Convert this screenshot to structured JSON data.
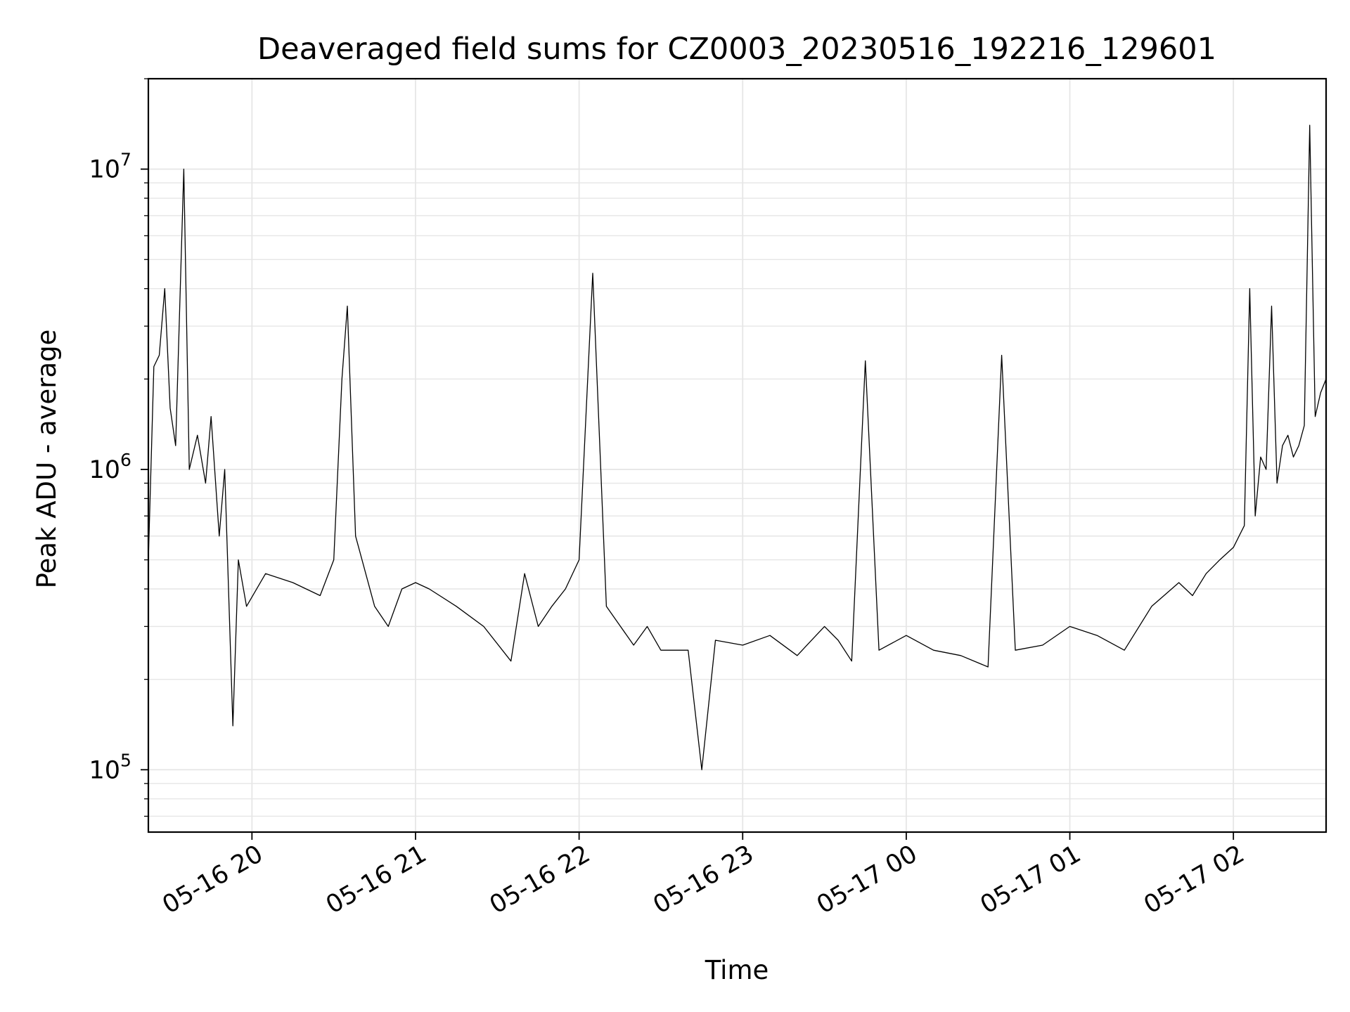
{
  "chart_data": {
    "type": "line",
    "title": "Deaveraged field sums for CZ0003_20230516_192216_129601",
    "xlabel": "Time",
    "ylabel": "Peak ADU - average",
    "y_scale": "log",
    "ylim": [
      62000,
      20000000
    ],
    "xlim": [
      "2023-05-16 19:22",
      "2023-05-17 02:34"
    ],
    "grid": true,
    "line_color": "#000000",
    "grid_color": "#e6e6e6",
    "x_ticks": [
      "05-16 20",
      "05-16 21",
      "05-16 22",
      "05-16 23",
      "05-17 00",
      "05-17 01",
      "05-17 02"
    ],
    "y_ticks": [
      {
        "base": "10",
        "exp": "5"
      },
      {
        "base": "10",
        "exp": "6"
      },
      {
        "base": "10",
        "exp": "7"
      }
    ],
    "series": [
      {
        "x": [
          "2023-05-16 19:22",
          "2023-05-16 19:24",
          "2023-05-16 19:26",
          "2023-05-16 19:28",
          "2023-05-16 19:30",
          "2023-05-16 19:32",
          "2023-05-16 19:35",
          "2023-05-16 19:37",
          "2023-05-16 19:40",
          "2023-05-16 19:43",
          "2023-05-16 19:45",
          "2023-05-16 19:48",
          "2023-05-16 19:50",
          "2023-05-16 19:53",
          "2023-05-16 19:55",
          "2023-05-16 19:58",
          "2023-05-16 20:05",
          "2023-05-16 20:15",
          "2023-05-16 20:25",
          "2023-05-16 20:30",
          "2023-05-16 20:33",
          "2023-05-16 20:35",
          "2023-05-16 20:38",
          "2023-05-16 20:45",
          "2023-05-16 20:50",
          "2023-05-16 20:55",
          "2023-05-16 21:00",
          "2023-05-16 21:05",
          "2023-05-16 21:15",
          "2023-05-16 21:25",
          "2023-05-16 21:35",
          "2023-05-16 21:40",
          "2023-05-16 21:45",
          "2023-05-16 21:50",
          "2023-05-16 21:55",
          "2023-05-16 22:00",
          "2023-05-16 22:05",
          "2023-05-16 22:10",
          "2023-05-16 22:20",
          "2023-05-16 22:25",
          "2023-05-16 22:30",
          "2023-05-16 22:40",
          "2023-05-16 22:45",
          "2023-05-16 22:50",
          "2023-05-16 23:00",
          "2023-05-16 23:10",
          "2023-05-16 23:20",
          "2023-05-16 23:30",
          "2023-05-16 23:35",
          "2023-05-16 23:40",
          "2023-05-16 23:45",
          "2023-05-16 23:50",
          "2023-05-17 00:00",
          "2023-05-17 00:10",
          "2023-05-17 00:20",
          "2023-05-17 00:30",
          "2023-05-17 00:35",
          "2023-05-17 00:40",
          "2023-05-17 00:50",
          "2023-05-17 01:00",
          "2023-05-17 01:10",
          "2023-05-17 01:20",
          "2023-05-17 01:30",
          "2023-05-17 01:40",
          "2023-05-17 01:45",
          "2023-05-17 01:50",
          "2023-05-17 01:55",
          "2023-05-17 02:00",
          "2023-05-17 02:04",
          "2023-05-17 02:06",
          "2023-05-17 02:08",
          "2023-05-17 02:10",
          "2023-05-17 02:12",
          "2023-05-17 02:14",
          "2023-05-17 02:16",
          "2023-05-17 02:18",
          "2023-05-17 02:20",
          "2023-05-17 02:22",
          "2023-05-17 02:24",
          "2023-05-17 02:26",
          "2023-05-17 02:28",
          "2023-05-17 02:30",
          "2023-05-17 02:32",
          "2023-05-17 02:34"
        ],
        "y": [
          500000,
          2200000,
          2400000,
          4000000,
          1600000,
          1200000,
          10000000,
          1000000,
          1300000,
          900000,
          1500000,
          600000,
          1000000,
          140000,
          500000,
          350000,
          450000,
          420000,
          380000,
          500000,
          2000000,
          3500000,
          600000,
          350000,
          300000,
          400000,
          420000,
          400000,
          350000,
          300000,
          230000,
          450000,
          300000,
          350000,
          400000,
          500000,
          4500000,
          350000,
          260000,
          300000,
          250000,
          250000,
          100000,
          270000,
          260000,
          280000,
          240000,
          300000,
          270000,
          230000,
          2300000,
          250000,
          280000,
          250000,
          240000,
          220000,
          2400000,
          250000,
          260000,
          300000,
          280000,
          250000,
          350000,
          420000,
          380000,
          450000,
          500000,
          550000,
          650000,
          4000000,
          700000,
          1100000,
          1000000,
          3500000,
          900000,
          1200000,
          1300000,
          1100000,
          1200000,
          1400000,
          14000000,
          1500000,
          1800000,
          2000000
        ]
      }
    ]
  }
}
